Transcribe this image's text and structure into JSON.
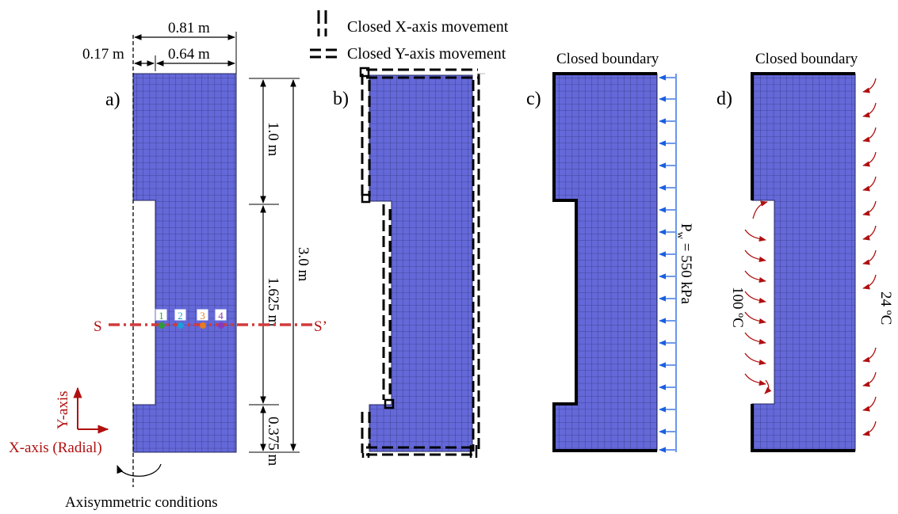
{
  "colors": {
    "mesh_fill": "#6468d8",
    "mesh_line": "#22265e",
    "section_line": "#d23a3a",
    "red_text": "#b01010",
    "arrow_blue": "#1a5fe0",
    "arrow_red": "#b01010"
  },
  "legend": {
    "x_movement": "Closed X-axis movement",
    "y_movement": "Closed Y-axis movement"
  },
  "panel_a": {
    "label": "a)",
    "dim_total_width": "0.81 m",
    "dim_axis_offset": "0.17 m",
    "dim_body_width": "0.64 m",
    "dim_top": "1.0 m",
    "dim_middle": "1.625 m",
    "dim_bottom": "0.375 m",
    "dim_total_height": "3.0 m",
    "section_start": "S",
    "section_end": "S’",
    "points": [
      {
        "label": "1",
        "color": "#2e9a3a"
      },
      {
        "label": "2",
        "color": "#1a9fd8"
      },
      {
        "label": "3",
        "color": "#e87a20"
      },
      {
        "label": "4",
        "color": "#8a3ab8"
      }
    ],
    "y_axis_label": "Y-axis",
    "x_axis_label": "X-axis (Radial)",
    "axisymmetric_label": "Axisymmetric conditions"
  },
  "panel_b": {
    "label": "b)"
  },
  "panel_c": {
    "label": "c)",
    "boundary_label": "Closed boundary",
    "pressure_label": "P",
    "pressure_sub": "w",
    "pressure_value": " = 550 kPa"
  },
  "panel_d": {
    "label": "d)",
    "boundary_label": "Closed boundary",
    "inner_temp": "100 ºC",
    "outer_temp": "24 ºC"
  }
}
